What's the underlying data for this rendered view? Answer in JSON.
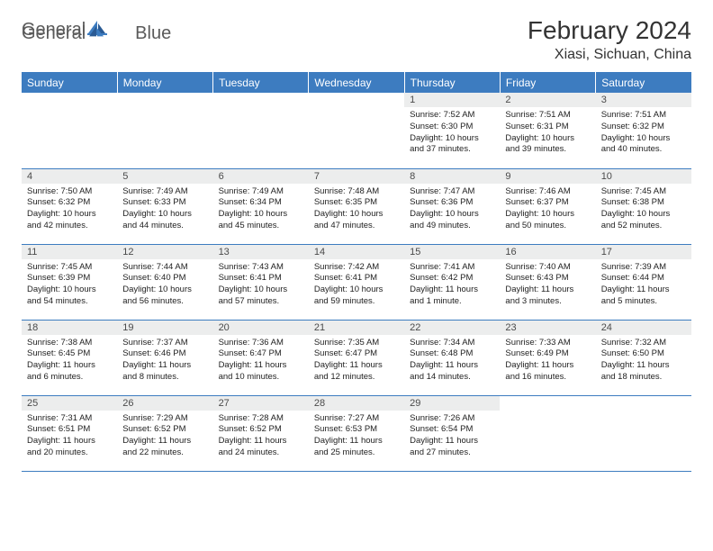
{
  "logo": {
    "text1": "General",
    "text2": "Blue"
  },
  "title": "February 2024",
  "location": "Xiasi, Sichuan, China",
  "colors": {
    "headerBg": "#3d7cc0",
    "headerText": "#ffffff",
    "dayNumBg": "#eceded",
    "borderColor": "#3d7cc0",
    "bodyText": "#222222"
  },
  "weekdays": [
    "Sunday",
    "Monday",
    "Tuesday",
    "Wednesday",
    "Thursday",
    "Friday",
    "Saturday"
  ],
  "weeks": [
    [
      {
        "n": "",
        "sunrise": "",
        "sunset": "",
        "daylight": ""
      },
      {
        "n": "",
        "sunrise": "",
        "sunset": "",
        "daylight": ""
      },
      {
        "n": "",
        "sunrise": "",
        "sunset": "",
        "daylight": ""
      },
      {
        "n": "",
        "sunrise": "",
        "sunset": "",
        "daylight": ""
      },
      {
        "n": "1",
        "sunrise": "Sunrise: 7:52 AM",
        "sunset": "Sunset: 6:30 PM",
        "daylight": "Daylight: 10 hours and 37 minutes."
      },
      {
        "n": "2",
        "sunrise": "Sunrise: 7:51 AM",
        "sunset": "Sunset: 6:31 PM",
        "daylight": "Daylight: 10 hours and 39 minutes."
      },
      {
        "n": "3",
        "sunrise": "Sunrise: 7:51 AM",
        "sunset": "Sunset: 6:32 PM",
        "daylight": "Daylight: 10 hours and 40 minutes."
      }
    ],
    [
      {
        "n": "4",
        "sunrise": "Sunrise: 7:50 AM",
        "sunset": "Sunset: 6:32 PM",
        "daylight": "Daylight: 10 hours and 42 minutes."
      },
      {
        "n": "5",
        "sunrise": "Sunrise: 7:49 AM",
        "sunset": "Sunset: 6:33 PM",
        "daylight": "Daylight: 10 hours and 44 minutes."
      },
      {
        "n": "6",
        "sunrise": "Sunrise: 7:49 AM",
        "sunset": "Sunset: 6:34 PM",
        "daylight": "Daylight: 10 hours and 45 minutes."
      },
      {
        "n": "7",
        "sunrise": "Sunrise: 7:48 AM",
        "sunset": "Sunset: 6:35 PM",
        "daylight": "Daylight: 10 hours and 47 minutes."
      },
      {
        "n": "8",
        "sunrise": "Sunrise: 7:47 AM",
        "sunset": "Sunset: 6:36 PM",
        "daylight": "Daylight: 10 hours and 49 minutes."
      },
      {
        "n": "9",
        "sunrise": "Sunrise: 7:46 AM",
        "sunset": "Sunset: 6:37 PM",
        "daylight": "Daylight: 10 hours and 50 minutes."
      },
      {
        "n": "10",
        "sunrise": "Sunrise: 7:45 AM",
        "sunset": "Sunset: 6:38 PM",
        "daylight": "Daylight: 10 hours and 52 minutes."
      }
    ],
    [
      {
        "n": "11",
        "sunrise": "Sunrise: 7:45 AM",
        "sunset": "Sunset: 6:39 PM",
        "daylight": "Daylight: 10 hours and 54 minutes."
      },
      {
        "n": "12",
        "sunrise": "Sunrise: 7:44 AM",
        "sunset": "Sunset: 6:40 PM",
        "daylight": "Daylight: 10 hours and 56 minutes."
      },
      {
        "n": "13",
        "sunrise": "Sunrise: 7:43 AM",
        "sunset": "Sunset: 6:41 PM",
        "daylight": "Daylight: 10 hours and 57 minutes."
      },
      {
        "n": "14",
        "sunrise": "Sunrise: 7:42 AM",
        "sunset": "Sunset: 6:41 PM",
        "daylight": "Daylight: 10 hours and 59 minutes."
      },
      {
        "n": "15",
        "sunrise": "Sunrise: 7:41 AM",
        "sunset": "Sunset: 6:42 PM",
        "daylight": "Daylight: 11 hours and 1 minute."
      },
      {
        "n": "16",
        "sunrise": "Sunrise: 7:40 AM",
        "sunset": "Sunset: 6:43 PM",
        "daylight": "Daylight: 11 hours and 3 minutes."
      },
      {
        "n": "17",
        "sunrise": "Sunrise: 7:39 AM",
        "sunset": "Sunset: 6:44 PM",
        "daylight": "Daylight: 11 hours and 5 minutes."
      }
    ],
    [
      {
        "n": "18",
        "sunrise": "Sunrise: 7:38 AM",
        "sunset": "Sunset: 6:45 PM",
        "daylight": "Daylight: 11 hours and 6 minutes."
      },
      {
        "n": "19",
        "sunrise": "Sunrise: 7:37 AM",
        "sunset": "Sunset: 6:46 PM",
        "daylight": "Daylight: 11 hours and 8 minutes."
      },
      {
        "n": "20",
        "sunrise": "Sunrise: 7:36 AM",
        "sunset": "Sunset: 6:47 PM",
        "daylight": "Daylight: 11 hours and 10 minutes."
      },
      {
        "n": "21",
        "sunrise": "Sunrise: 7:35 AM",
        "sunset": "Sunset: 6:47 PM",
        "daylight": "Daylight: 11 hours and 12 minutes."
      },
      {
        "n": "22",
        "sunrise": "Sunrise: 7:34 AM",
        "sunset": "Sunset: 6:48 PM",
        "daylight": "Daylight: 11 hours and 14 minutes."
      },
      {
        "n": "23",
        "sunrise": "Sunrise: 7:33 AM",
        "sunset": "Sunset: 6:49 PM",
        "daylight": "Daylight: 11 hours and 16 minutes."
      },
      {
        "n": "24",
        "sunrise": "Sunrise: 7:32 AM",
        "sunset": "Sunset: 6:50 PM",
        "daylight": "Daylight: 11 hours and 18 minutes."
      }
    ],
    [
      {
        "n": "25",
        "sunrise": "Sunrise: 7:31 AM",
        "sunset": "Sunset: 6:51 PM",
        "daylight": "Daylight: 11 hours and 20 minutes."
      },
      {
        "n": "26",
        "sunrise": "Sunrise: 7:29 AM",
        "sunset": "Sunset: 6:52 PM",
        "daylight": "Daylight: 11 hours and 22 minutes."
      },
      {
        "n": "27",
        "sunrise": "Sunrise: 7:28 AM",
        "sunset": "Sunset: 6:52 PM",
        "daylight": "Daylight: 11 hours and 24 minutes."
      },
      {
        "n": "28",
        "sunrise": "Sunrise: 7:27 AM",
        "sunset": "Sunset: 6:53 PM",
        "daylight": "Daylight: 11 hours and 25 minutes."
      },
      {
        "n": "29",
        "sunrise": "Sunrise: 7:26 AM",
        "sunset": "Sunset: 6:54 PM",
        "daylight": "Daylight: 11 hours and 27 minutes."
      },
      {
        "n": "",
        "sunrise": "",
        "sunset": "",
        "daylight": ""
      },
      {
        "n": "",
        "sunrise": "",
        "sunset": "",
        "daylight": ""
      }
    ]
  ]
}
